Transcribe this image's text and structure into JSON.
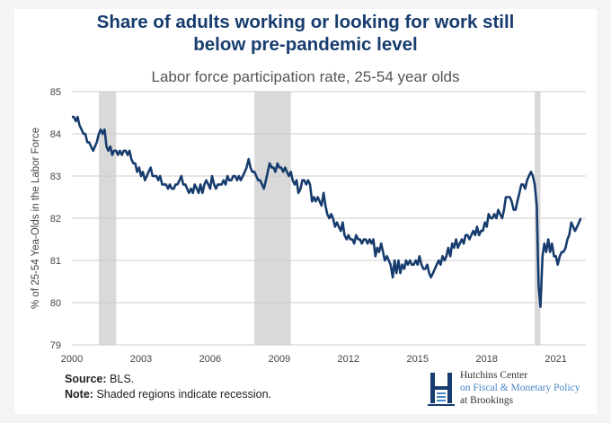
{
  "title": "Share of adults working or looking for work still below pre-pandemic level",
  "title_lines": [
    "Share of adults working or looking for work still",
    "below pre-pandemic level"
  ],
  "subtitle": "Labor force participation rate, 25-54 year olds",
  "source_label": "Source:",
  "source_text": "BLS.",
  "note_label": "Note:",
  "note_text": "Shaded regions indicate recession.",
  "logo": {
    "line1": "Hutchins Center",
    "line2": "on Fiscal & Monetary Policy",
    "line3": "at Brookings",
    "icon": "hutchins-h-icon",
    "accent": "#4a86c5"
  },
  "colors": {
    "line": "#173c6e",
    "recession": "#d9d9d9",
    "grid": "#cccccc",
    "title": "#173c6e"
  },
  "chart_data": {
    "type": "line",
    "ylabel": "% of 25-54 Yea-Olds in the Labor Force",
    "xlabel": "",
    "ylim": [
      79,
      85
    ],
    "xlim": [
      2000,
      2022.3
    ],
    "yticks": [
      79,
      80,
      81,
      82,
      83,
      84,
      85
    ],
    "xticks": [
      2000,
      2003,
      2006,
      2009,
      2012,
      2015,
      2018,
      2021
    ],
    "grid": true,
    "recessions": [
      [
        2001.17,
        2001.92
      ],
      [
        2007.92,
        2009.5
      ],
      [
        2020.08,
        2020.33
      ]
    ],
    "series": [
      {
        "values": [
          [
            2000.0,
            84.4
          ],
          [
            2000.08,
            84.4
          ],
          [
            2000.17,
            84.3
          ],
          [
            2000.25,
            84.4
          ],
          [
            2000.33,
            84.2
          ],
          [
            2000.42,
            84.1
          ],
          [
            2000.5,
            84.0
          ],
          [
            2000.58,
            84.0
          ],
          [
            2000.67,
            83.8
          ],
          [
            2000.75,
            83.8
          ],
          [
            2000.83,
            83.7
          ],
          [
            2000.92,
            83.6
          ],
          [
            2001.0,
            83.7
          ],
          [
            2001.08,
            83.8
          ],
          [
            2001.17,
            84.0
          ],
          [
            2001.25,
            84.1
          ],
          [
            2001.33,
            84.0
          ],
          [
            2001.42,
            84.1
          ],
          [
            2001.5,
            83.7
          ],
          [
            2001.58,
            83.6
          ],
          [
            2001.67,
            83.7
          ],
          [
            2001.75,
            83.5
          ],
          [
            2001.83,
            83.6
          ],
          [
            2001.92,
            83.6
          ],
          [
            2002.0,
            83.5
          ],
          [
            2002.08,
            83.6
          ],
          [
            2002.17,
            83.5
          ],
          [
            2002.25,
            83.6
          ],
          [
            2002.33,
            83.6
          ],
          [
            2002.42,
            83.5
          ],
          [
            2002.5,
            83.6
          ],
          [
            2002.58,
            83.4
          ],
          [
            2002.67,
            83.3
          ],
          [
            2002.75,
            83.3
          ],
          [
            2002.83,
            83.1
          ],
          [
            2002.92,
            83.2
          ],
          [
            2003.0,
            83.0
          ],
          [
            2003.08,
            83.1
          ],
          [
            2003.17,
            82.9
          ],
          [
            2003.25,
            83.0
          ],
          [
            2003.33,
            83.1
          ],
          [
            2003.42,
            83.2
          ],
          [
            2003.5,
            83.0
          ],
          [
            2003.58,
            83.0
          ],
          [
            2003.67,
            83.0
          ],
          [
            2003.75,
            82.9
          ],
          [
            2003.83,
            83.0
          ],
          [
            2003.92,
            82.8
          ],
          [
            2004.0,
            82.8
          ],
          [
            2004.08,
            82.8
          ],
          [
            2004.17,
            82.7
          ],
          [
            2004.25,
            82.8
          ],
          [
            2004.33,
            82.7
          ],
          [
            2004.42,
            82.7
          ],
          [
            2004.5,
            82.8
          ],
          [
            2004.58,
            82.8
          ],
          [
            2004.67,
            82.9
          ],
          [
            2004.75,
            83.0
          ],
          [
            2004.83,
            82.8
          ],
          [
            2004.92,
            82.8
          ],
          [
            2005.0,
            82.7
          ],
          [
            2005.08,
            82.6
          ],
          [
            2005.17,
            82.7
          ],
          [
            2005.25,
            82.6
          ],
          [
            2005.33,
            82.8
          ],
          [
            2005.42,
            82.7
          ],
          [
            2005.5,
            82.6
          ],
          [
            2005.58,
            82.8
          ],
          [
            2005.67,
            82.6
          ],
          [
            2005.75,
            82.8
          ],
          [
            2005.83,
            82.9
          ],
          [
            2005.92,
            82.8
          ],
          [
            2006.0,
            82.7
          ],
          [
            2006.08,
            83.0
          ],
          [
            2006.17,
            82.8
          ],
          [
            2006.25,
            82.7
          ],
          [
            2006.33,
            82.8
          ],
          [
            2006.42,
            82.8
          ],
          [
            2006.5,
            82.8
          ],
          [
            2006.58,
            82.9
          ],
          [
            2006.67,
            82.8
          ],
          [
            2006.75,
            83.0
          ],
          [
            2006.83,
            82.9
          ],
          [
            2006.92,
            82.9
          ],
          [
            2007.0,
            83.0
          ],
          [
            2007.08,
            83.0
          ],
          [
            2007.17,
            82.9
          ],
          [
            2007.25,
            83.0
          ],
          [
            2007.33,
            82.9
          ],
          [
            2007.42,
            83.0
          ],
          [
            2007.5,
            83.1
          ],
          [
            2007.58,
            83.2
          ],
          [
            2007.67,
            83.4
          ],
          [
            2007.75,
            83.2
          ],
          [
            2007.83,
            83.1
          ],
          [
            2007.92,
            83.1
          ],
          [
            2008.0,
            83.0
          ],
          [
            2008.08,
            82.9
          ],
          [
            2008.17,
            82.9
          ],
          [
            2008.25,
            82.8
          ],
          [
            2008.33,
            82.7
          ],
          [
            2008.42,
            82.9
          ],
          [
            2008.5,
            83.1
          ],
          [
            2008.58,
            83.3
          ],
          [
            2008.67,
            83.2
          ],
          [
            2008.75,
            83.2
          ],
          [
            2008.83,
            83.1
          ],
          [
            2008.92,
            83.3
          ],
          [
            2009.0,
            83.2
          ],
          [
            2009.08,
            83.2
          ],
          [
            2009.17,
            83.1
          ],
          [
            2009.25,
            83.2
          ],
          [
            2009.33,
            83.1
          ],
          [
            2009.42,
            83.0
          ],
          [
            2009.5,
            83.1
          ],
          [
            2009.58,
            82.9
          ],
          [
            2009.67,
            82.8
          ],
          [
            2009.75,
            82.9
          ],
          [
            2009.83,
            82.6
          ],
          [
            2009.92,
            82.7
          ],
          [
            2010.0,
            82.9
          ],
          [
            2010.08,
            82.9
          ],
          [
            2010.17,
            82.8
          ],
          [
            2010.25,
            82.9
          ],
          [
            2010.33,
            82.8
          ],
          [
            2010.42,
            82.4
          ],
          [
            2010.5,
            82.5
          ],
          [
            2010.58,
            82.4
          ],
          [
            2010.67,
            82.5
          ],
          [
            2010.75,
            82.4
          ],
          [
            2010.83,
            82.3
          ],
          [
            2010.92,
            82.6
          ],
          [
            2011.0,
            82.3
          ],
          [
            2011.08,
            82.1
          ],
          [
            2011.17,
            82.0
          ],
          [
            2011.25,
            82.1
          ],
          [
            2011.33,
            82.0
          ],
          [
            2011.42,
            81.8
          ],
          [
            2011.5,
            81.9
          ],
          [
            2011.58,
            81.8
          ],
          [
            2011.67,
            81.7
          ],
          [
            2011.75,
            81.9
          ],
          [
            2011.83,
            81.6
          ],
          [
            2011.92,
            81.5
          ],
          [
            2012.0,
            81.6
          ],
          [
            2012.08,
            81.5
          ],
          [
            2012.17,
            81.5
          ],
          [
            2012.25,
            81.4
          ],
          [
            2012.33,
            81.6
          ],
          [
            2012.42,
            81.5
          ],
          [
            2012.5,
            81.5
          ],
          [
            2012.58,
            81.4
          ],
          [
            2012.67,
            81.5
          ],
          [
            2012.75,
            81.5
          ],
          [
            2012.83,
            81.4
          ],
          [
            2012.92,
            81.5
          ],
          [
            2013.0,
            81.4
          ],
          [
            2013.08,
            81.5
          ],
          [
            2013.17,
            81.1
          ],
          [
            2013.25,
            81.3
          ],
          [
            2013.33,
            81.2
          ],
          [
            2013.42,
            81.4
          ],
          [
            2013.5,
            81.2
          ],
          [
            2013.58,
            81.0
          ],
          [
            2013.67,
            81.1
          ],
          [
            2013.75,
            81.0
          ],
          [
            2013.83,
            80.9
          ],
          [
            2013.92,
            80.6
          ],
          [
            2014.0,
            81.0
          ],
          [
            2014.08,
            80.7
          ],
          [
            2014.17,
            81.0
          ],
          [
            2014.25,
            80.7
          ],
          [
            2014.33,
            80.9
          ],
          [
            2014.42,
            80.8
          ],
          [
            2014.5,
            81.0
          ],
          [
            2014.58,
            80.9
          ],
          [
            2014.67,
            81.0
          ],
          [
            2014.75,
            80.9
          ],
          [
            2014.83,
            80.9
          ],
          [
            2014.92,
            81.0
          ],
          [
            2015.0,
            80.9
          ],
          [
            2015.08,
            81.1
          ],
          [
            2015.17,
            80.9
          ],
          [
            2015.25,
            80.8
          ],
          [
            2015.33,
            80.8
          ],
          [
            2015.42,
            80.9
          ],
          [
            2015.5,
            80.7
          ],
          [
            2015.58,
            80.6
          ],
          [
            2015.67,
            80.7
          ],
          [
            2015.75,
            80.8
          ],
          [
            2015.83,
            80.9
          ],
          [
            2015.92,
            81.0
          ],
          [
            2016.0,
            80.9
          ],
          [
            2016.08,
            81.1
          ],
          [
            2016.17,
            81.0
          ],
          [
            2016.25,
            81.1
          ],
          [
            2016.33,
            81.3
          ],
          [
            2016.42,
            81.1
          ],
          [
            2016.5,
            81.4
          ],
          [
            2016.58,
            81.3
          ],
          [
            2016.67,
            81.5
          ],
          [
            2016.75,
            81.3
          ],
          [
            2016.83,
            81.4
          ],
          [
            2016.92,
            81.5
          ],
          [
            2017.0,
            81.4
          ],
          [
            2017.08,
            81.6
          ],
          [
            2017.17,
            81.6
          ],
          [
            2017.25,
            81.5
          ],
          [
            2017.33,
            81.6
          ],
          [
            2017.42,
            81.7
          ],
          [
            2017.5,
            81.6
          ],
          [
            2017.58,
            81.8
          ],
          [
            2017.67,
            81.6
          ],
          [
            2017.75,
            81.7
          ],
          [
            2017.83,
            81.7
          ],
          [
            2017.92,
            81.9
          ],
          [
            2018.0,
            81.8
          ],
          [
            2018.08,
            82.1
          ],
          [
            2018.17,
            82.0
          ],
          [
            2018.25,
            82.0
          ],
          [
            2018.33,
            82.1
          ],
          [
            2018.42,
            82.0
          ],
          [
            2018.5,
            82.2
          ],
          [
            2018.58,
            82.1
          ],
          [
            2018.67,
            82.0
          ],
          [
            2018.75,
            82.2
          ],
          [
            2018.83,
            82.5
          ],
          [
            2018.92,
            82.5
          ],
          [
            2019.0,
            82.5
          ],
          [
            2019.08,
            82.4
          ],
          [
            2019.17,
            82.2
          ],
          [
            2019.25,
            82.2
          ],
          [
            2019.33,
            82.4
          ],
          [
            2019.42,
            82.6
          ],
          [
            2019.5,
            82.8
          ],
          [
            2019.58,
            82.8
          ],
          [
            2019.67,
            82.7
          ],
          [
            2019.75,
            82.9
          ],
          [
            2019.83,
            83.0
          ],
          [
            2019.92,
            83.1
          ],
          [
            2020.0,
            83.0
          ],
          [
            2020.08,
            82.8
          ],
          [
            2020.17,
            82.3
          ],
          [
            2020.25,
            80.4
          ],
          [
            2020.33,
            79.9
          ],
          [
            2020.42,
            81.1
          ],
          [
            2020.5,
            81.4
          ],
          [
            2020.58,
            81.2
          ],
          [
            2020.67,
            81.5
          ],
          [
            2020.75,
            81.2
          ],
          [
            2020.83,
            81.4
          ],
          [
            2020.92,
            81.1
          ],
          [
            2021.0,
            81.1
          ],
          [
            2021.08,
            80.9
          ],
          [
            2021.17,
            81.1
          ],
          [
            2021.25,
            81.2
          ],
          [
            2021.33,
            81.2
          ],
          [
            2021.42,
            81.3
          ],
          [
            2021.5,
            81.5
          ],
          [
            2021.58,
            81.6
          ],
          [
            2021.67,
            81.9
          ],
          [
            2021.75,
            81.8
          ],
          [
            2021.83,
            81.7
          ],
          [
            2021.92,
            81.8
          ],
          [
            2022.0,
            81.9
          ],
          [
            2022.08,
            82.0
          ]
        ]
      }
    ]
  }
}
